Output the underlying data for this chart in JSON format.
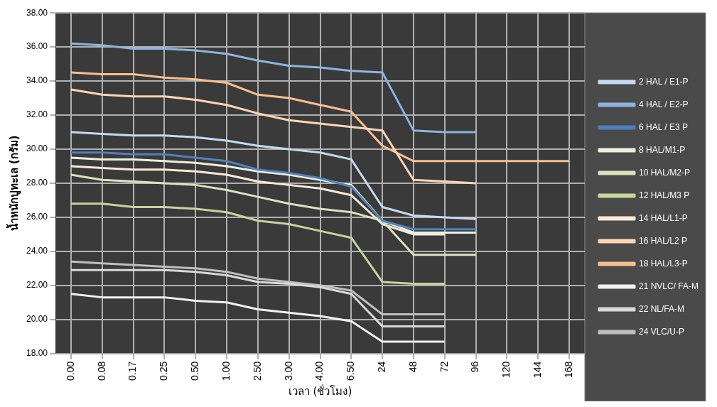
{
  "chart_data": {
    "type": "line",
    "xlabel": "เวลา (ชั่วโมง)",
    "ylabel": "น้ำหนักปูทะเล (กรัม)",
    "categories": [
      "0.00",
      "0.08",
      "0.17",
      "0.25",
      "0.50",
      "1.00",
      "2.50",
      "3.00",
      "4.00",
      "6.50",
      "24",
      "48",
      "72",
      "96",
      "120",
      "144",
      "168"
    ],
    "series": [
      {
        "name": "2 HAL / E1-P",
        "color": "#c6d9f1",
        "values": [
          31.0,
          30.9,
          30.8,
          30.8,
          30.7,
          30.5,
          30.2,
          30.0,
          29.8,
          29.4,
          26.6,
          26.1,
          26.0,
          25.9,
          null,
          null,
          null
        ]
      },
      {
        "name": "4 HAL / E2-P",
        "color": "#8db4e2",
        "values": [
          36.2,
          36.1,
          35.9,
          35.9,
          35.8,
          35.6,
          35.2,
          34.9,
          34.8,
          34.6,
          34.5,
          31.1,
          31.0,
          31.0,
          null,
          null,
          null
        ]
      },
      {
        "name": "6 HAL / E3 P",
        "color": "#4f81bd",
        "values": [
          29.8,
          29.8,
          29.7,
          29.7,
          29.5,
          29.3,
          28.8,
          28.6,
          28.3,
          27.8,
          25.8,
          25.3,
          25.3,
          25.3,
          null,
          null,
          null
        ]
      },
      {
        "name": "8 HAL/M1-P",
        "color": "#ebf1de",
        "values": [
          29.5,
          29.4,
          29.4,
          29.3,
          29.2,
          29.0,
          28.7,
          28.5,
          28.2,
          27.9,
          25.8,
          25.1,
          25.1,
          25.1,
          null,
          null,
          null
        ]
      },
      {
        "name": "10 HAL/M2-P",
        "color": "#d7e4bc",
        "values": [
          28.5,
          28.2,
          28.1,
          28.0,
          27.9,
          27.6,
          27.2,
          26.8,
          26.5,
          26.3,
          25.8,
          23.8,
          23.8,
          23.8,
          null,
          null,
          null
        ]
      },
      {
        "name": "12 HAL/M3 P",
        "color": "#c3d69b",
        "values": [
          26.8,
          26.8,
          26.6,
          26.6,
          26.5,
          26.3,
          25.8,
          25.6,
          25.2,
          24.8,
          22.2,
          22.1,
          22.1,
          null,
          null,
          null,
          null
        ]
      },
      {
        "name": "14 HAL/L1-P",
        "color": "#fde9d9",
        "values": [
          29.0,
          28.9,
          28.8,
          28.8,
          28.7,
          28.5,
          28.1,
          27.9,
          27.7,
          27.3,
          25.6,
          25.0,
          25.0,
          null,
          null,
          null,
          null
        ]
      },
      {
        "name": "16 HAL/L2 P",
        "color": "#fcd5b4",
        "values": [
          33.5,
          33.2,
          33.1,
          33.1,
          32.9,
          32.6,
          32.1,
          31.7,
          31.5,
          31.3,
          31.1,
          28.2,
          28.1,
          28.0,
          null,
          null,
          null
        ]
      },
      {
        "name": "18 HAL/L3-P",
        "color": "#fabf8f",
        "values": [
          34.5,
          34.4,
          34.4,
          34.2,
          34.1,
          33.9,
          33.2,
          33.0,
          32.6,
          32.2,
          30.2,
          29.3,
          29.3,
          29.3,
          29.3,
          29.3,
          29.3
        ]
      },
      {
        "name": "21 NVLC/ FA-M",
        "color": "#f2f2f2",
        "values": [
          21.5,
          21.3,
          21.3,
          21.3,
          21.1,
          21.0,
          20.6,
          20.4,
          20.2,
          19.9,
          18.7,
          18.7,
          18.7,
          null,
          null,
          null,
          null
        ]
      },
      {
        "name": "22 NL/FA-M",
        "color": "#d9d9d9",
        "values": [
          22.9,
          22.9,
          22.9,
          22.9,
          22.8,
          22.6,
          22.2,
          22.1,
          21.9,
          21.5,
          19.6,
          19.6,
          19.6,
          null,
          null,
          null,
          null
        ]
      },
      {
        "name": "24 VLC/U-P",
        "color": "#bfbfbf",
        "values": [
          23.4,
          23.3,
          23.2,
          23.1,
          23.0,
          22.8,
          22.4,
          22.2,
          22.0,
          21.7,
          20.3,
          20.3,
          20.3,
          null,
          null,
          null,
          null
        ]
      }
    ],
    "ylim": [
      18,
      38
    ],
    "yticks": [
      {
        "value": 18,
        "label": "18.00"
      },
      {
        "value": 20,
        "label": "20.00"
      },
      {
        "value": 22,
        "label": "22.00"
      },
      {
        "value": 24,
        "label": "24.00"
      },
      {
        "value": 26,
        "label": "26.00"
      },
      {
        "value": 28,
        "label": "28.00"
      },
      {
        "value": 30,
        "label": "30.00"
      },
      {
        "value": 32,
        "label": "32.00"
      },
      {
        "value": 34,
        "label": "34.00"
      },
      {
        "value": 36,
        "label": "36.00"
      },
      {
        "value": 38,
        "label": "38.00"
      }
    ],
    "grid": true,
    "legend": "right",
    "marker": "none",
    "line_style": "solid"
  }
}
